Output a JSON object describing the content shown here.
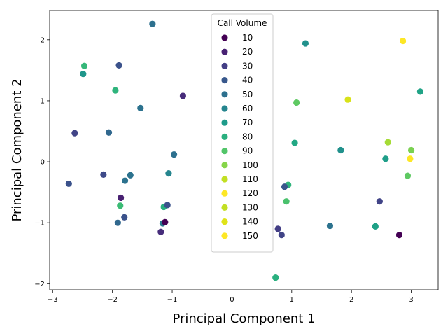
{
  "chart_data": {
    "type": "scatter",
    "title": "",
    "xlabel": "Principal Component 1",
    "ylabel": "Principal Component 2",
    "xlim": [
      -3.05,
      3.45
    ],
    "ylim": [
      -2.1,
      2.48
    ],
    "xticks": [
      -3,
      -2,
      -1,
      0,
      1,
      2,
      3
    ],
    "yticks": [
      -2,
      -1,
      0,
      1,
      2
    ],
    "grid": false,
    "legend": {
      "title": "Call Volume",
      "placement": "upper center",
      "entries": [
        {
          "label": "10",
          "color": "#440154"
        },
        {
          "label": "20",
          "color": "#482173"
        },
        {
          "label": "30",
          "color": "#433e85"
        },
        {
          "label": "40",
          "color": "#38588c"
        },
        {
          "label": "50",
          "color": "#2d708e"
        },
        {
          "label": "60",
          "color": "#25858e"
        },
        {
          "label": "70",
          "color": "#1e9b8a"
        },
        {
          "label": "80",
          "color": "#2ab07f"
        },
        {
          "label": "90",
          "color": "#52c569"
        },
        {
          "label": "100",
          "color": "#86d549"
        },
        {
          "label": "110",
          "color": "#c2df23"
        },
        {
          "label": "120",
          "color": "#fde725"
        },
        {
          "label": "130",
          "color": "#c2df23"
        },
        {
          "label": "140",
          "color": "#dfe318"
        },
        {
          "label": "150",
          "color": "#fde725"
        }
      ]
    },
    "points": [
      {
        "x": -1.33,
        "y": 2.26,
        "color": "#2d708e"
      },
      {
        "x": 1.23,
        "y": 1.94,
        "color": "#21918c"
      },
      {
        "x": 2.86,
        "y": 1.98,
        "color": "#fde725"
      },
      {
        "x": -2.47,
        "y": 1.57,
        "color": "#35b779"
      },
      {
        "x": -2.49,
        "y": 1.44,
        "color": "#1f968b"
      },
      {
        "x": -1.89,
        "y": 1.58,
        "color": "#3b528b"
      },
      {
        "x": -1.95,
        "y": 1.17,
        "color": "#2fb47c"
      },
      {
        "x": -0.82,
        "y": 1.08,
        "color": "#472c7a"
      },
      {
        "x": -1.53,
        "y": 0.88,
        "color": "#2c728e"
      },
      {
        "x": 1.08,
        "y": 0.97,
        "color": "#5ec962"
      },
      {
        "x": 1.94,
        "y": 1.02,
        "color": "#d8e219"
      },
      {
        "x": 3.15,
        "y": 1.15,
        "color": "#20a386"
      },
      {
        "x": -2.63,
        "y": 0.47,
        "color": "#414487"
      },
      {
        "x": -2.06,
        "y": 0.48,
        "color": "#31688e"
      },
      {
        "x": -0.97,
        "y": 0.12,
        "color": "#2d708e"
      },
      {
        "x": 1.05,
        "y": 0.31,
        "color": "#22a884"
      },
      {
        "x": 1.82,
        "y": 0.19,
        "color": "#21918c"
      },
      {
        "x": 2.61,
        "y": 0.32,
        "color": "#a5db36"
      },
      {
        "x": 3.0,
        "y": 0.19,
        "color": "#7ad151"
      },
      {
        "x": 2.57,
        "y": 0.05,
        "color": "#1f9e89"
      },
      {
        "x": 2.98,
        "y": 0.05,
        "color": "#fde725"
      },
      {
        "x": -2.73,
        "y": -0.36,
        "color": "#3b528b"
      },
      {
        "x": -2.15,
        "y": -0.21,
        "color": "#3e4a89"
      },
      {
        "x": -1.7,
        "y": -0.22,
        "color": "#2c728e"
      },
      {
        "x": -1.79,
        "y": -0.31,
        "color": "#2c728e"
      },
      {
        "x": -1.06,
        "y": -0.19,
        "color": "#25858e"
      },
      {
        "x": 0.94,
        "y": -0.38,
        "color": "#2fb47c"
      },
      {
        "x": 0.88,
        "y": -0.41,
        "color": "#39568c"
      },
      {
        "x": 2.94,
        "y": -0.23,
        "color": "#5ec962"
      },
      {
        "x": -1.86,
        "y": -0.59,
        "color": "#482071"
      },
      {
        "x": -1.87,
        "y": -0.72,
        "color": "#3bbb75"
      },
      {
        "x": -1.14,
        "y": -0.74,
        "color": "#29af7f"
      },
      {
        "x": -1.08,
        "y": -0.71,
        "color": "#3b528b"
      },
      {
        "x": 0.91,
        "y": -0.65,
        "color": "#4ac16d"
      },
      {
        "x": 2.47,
        "y": -0.65,
        "color": "#414487"
      },
      {
        "x": -1.8,
        "y": -0.91,
        "color": "#3b528b"
      },
      {
        "x": -1.91,
        "y": -1.0,
        "color": "#31688e"
      },
      {
        "x": -1.16,
        "y": -1.01,
        "color": "#2a788e"
      },
      {
        "x": -1.12,
        "y": -0.99,
        "color": "#440154"
      },
      {
        "x": -1.19,
        "y": -1.15,
        "color": "#472d7b"
      },
      {
        "x": 0.77,
        "y": -1.1,
        "color": "#433e85"
      },
      {
        "x": 0.83,
        "y": -1.2,
        "color": "#414487"
      },
      {
        "x": 1.64,
        "y": -1.05,
        "color": "#2c728e"
      },
      {
        "x": 2.4,
        "y": -1.06,
        "color": "#1fa187"
      },
      {
        "x": 2.8,
        "y": -1.2,
        "color": "#440154"
      },
      {
        "x": 0.73,
        "y": -1.9,
        "color": "#2ab07f"
      }
    ]
  }
}
